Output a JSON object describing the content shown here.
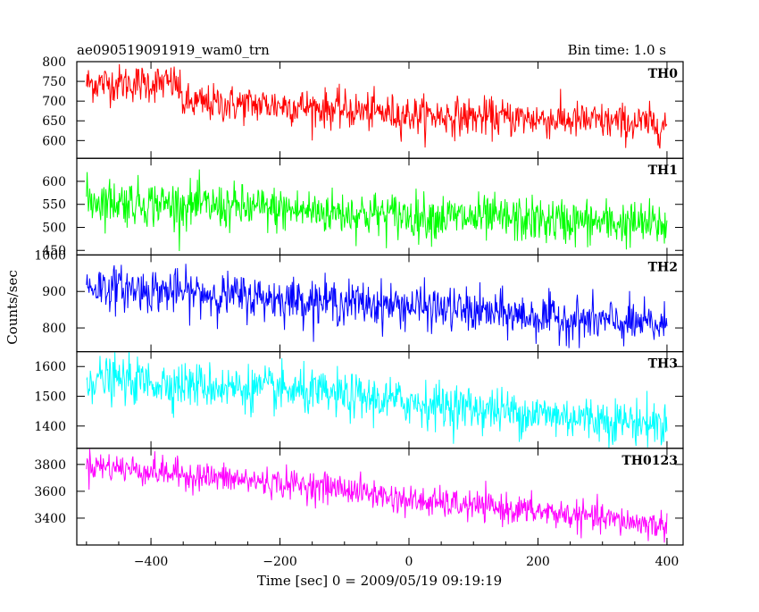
{
  "header": {
    "title": "ae090519091919_wam0_trn",
    "bin_time": "Bin time: 1.0 s"
  },
  "axes": {
    "xlabel": "Time [sec] 0 = 2009/05/19 09:19:19",
    "ylabel": "Counts/sec",
    "xlim": [
      -515,
      425
    ],
    "xticks": [
      -400,
      -200,
      0,
      200,
      400
    ],
    "xtick_labels": [
      "−400",
      "−200",
      "0",
      "200",
      "400"
    ]
  },
  "chart_data": {
    "type": "line",
    "title": "ae090519091919_wam0_trn",
    "xlabel": "Time [sec] 0 = 2009/05/19 09:19:19",
    "ylabel": "Counts/sec",
    "x_range": [
      -500,
      400
    ],
    "bin_time_s": 1.0,
    "panels": [
      {
        "name": "TH0",
        "color": "#ff0000",
        "ylim": [
          555,
          800
        ],
        "yticks": [
          600,
          650,
          700,
          750,
          800
        ],
        "trend": [
          [
            -500,
            745
          ],
          [
            -360,
            745
          ],
          [
            -350,
            695
          ],
          [
            -200,
            690
          ],
          [
            0,
            665
          ],
          [
            200,
            655
          ],
          [
            400,
            640
          ]
        ],
        "noise_sd": 24
      },
      {
        "name": "TH1",
        "color": "#00ff00",
        "ylim": [
          440,
          650
        ],
        "yticks": [
          450,
          500,
          550,
          600
        ],
        "trend": [
          [
            -500,
            560
          ],
          [
            -300,
            545
          ],
          [
            0,
            525
          ],
          [
            200,
            515
          ],
          [
            400,
            505
          ]
        ],
        "noise_sd": 25
      },
      {
        "name": "TH2",
        "color": "#0000ff",
        "ylim": [
          735,
          1000
        ],
        "yticks": [
          800,
          900,
          1000
        ],
        "trend": [
          [
            -500,
            915
          ],
          [
            -200,
            880
          ],
          [
            0,
            860
          ],
          [
            200,
            830
          ],
          [
            400,
            805
          ]
        ],
        "noise_sd": 30
      },
      {
        "name": "TH3",
        "color": "#00ffff",
        "ylim": [
          1325,
          1650
        ],
        "yticks": [
          1400,
          1500,
          1600
        ],
        "trend": [
          [
            -500,
            1560
          ],
          [
            -200,
            1520
          ],
          [
            0,
            1480
          ],
          [
            200,
            1440
          ],
          [
            400,
            1405
          ]
        ],
        "noise_sd": 38
      },
      {
        "name": "TH0123",
        "color": "#ff00ff",
        "ylim": [
          3200,
          3920
        ],
        "yticks": [
          3400,
          3600,
          3800
        ],
        "trend": [
          [
            -500,
            3800
          ],
          [
            -300,
            3700
          ],
          [
            -100,
            3620
          ],
          [
            0,
            3530
          ],
          [
            200,
            3450
          ],
          [
            400,
            3340
          ]
        ],
        "noise_sd": 55
      }
    ]
  }
}
